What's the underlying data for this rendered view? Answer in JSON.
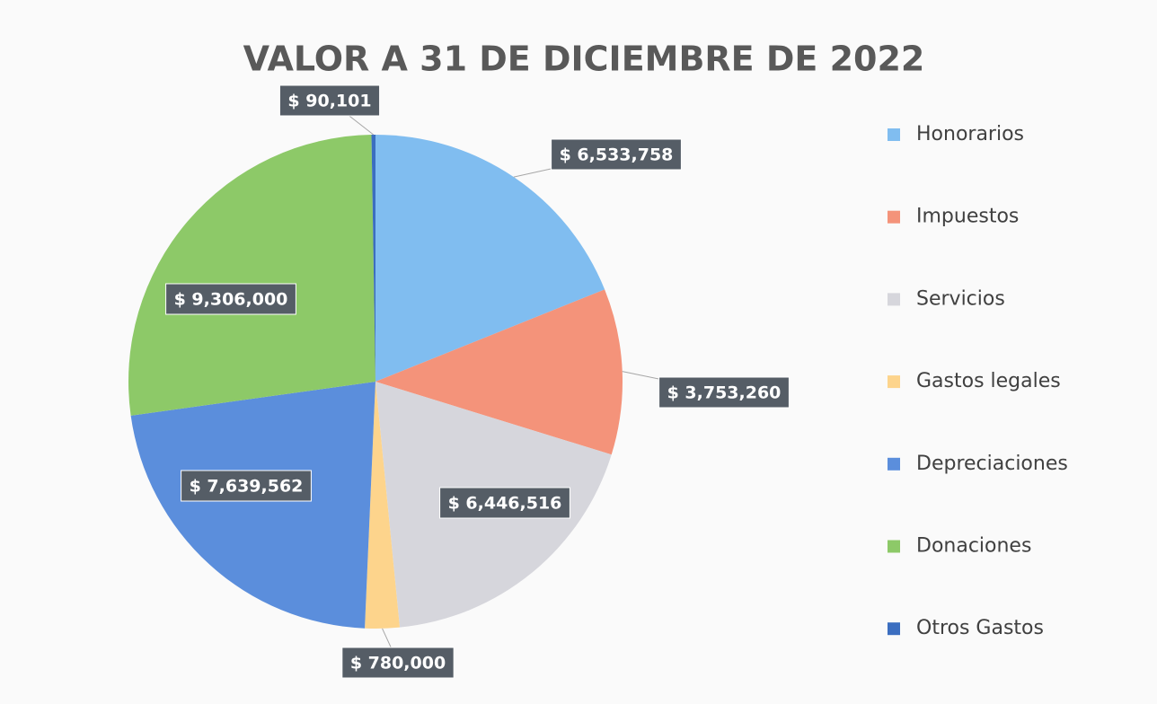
{
  "chart_data": {
    "type": "pie",
    "title": "VALOR A 31 DE DICIEMBRE DE 2022",
    "categories": [
      "Honorarios",
      "Impuestos",
      "Servicios",
      "Gastos legales",
      "Depreciaciones",
      "Donaciones",
      "Otros Gastos"
    ],
    "values": [
      6533758,
      3753260,
      6446516,
      780000,
      7639562,
      9306000,
      90101
    ],
    "value_labels": [
      "$ 6,533,758",
      "$ 3,753,260",
      "$ 6,446,516",
      "$ 780,000",
      "$ 7,639,562",
      "$ 9,306,000",
      "$ 90,101"
    ],
    "colors": [
      "#80bdf0",
      "#f4937a",
      "#d6d6dc",
      "#fdd48c",
      "#5b8edc",
      "#8dc968",
      "#3b6ec0"
    ],
    "legend": "right"
  }
}
